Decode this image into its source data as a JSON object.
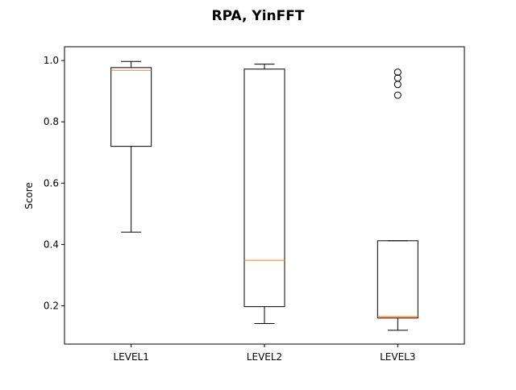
{
  "chart_data": {
    "type": "box",
    "title": "RPA, YinFFT",
    "xlabel": "",
    "ylabel": "Score",
    "ylim": [
      0.075,
      1.045
    ],
    "yticks": [
      0.2,
      0.4,
      0.6,
      0.8,
      1.0
    ],
    "ytick_labels": [
      "0.2",
      "0.4",
      "0.6",
      "0.8",
      "1.0"
    ],
    "grid": false,
    "categories": [
      "LEVEL1",
      "LEVEL2",
      "LEVEL3"
    ],
    "boxes": [
      {
        "whislo": 0.44,
        "q1": 0.72,
        "med": 0.968,
        "q3": 0.977,
        "whishi": 0.997,
        "fliers": []
      },
      {
        "whislo": 0.142,
        "q1": 0.197,
        "med": 0.348,
        "q3": 0.972,
        "whishi": 0.988,
        "fliers": []
      },
      {
        "whislo": 0.12,
        "q1": 0.16,
        "med": 0.165,
        "q3": 0.412,
        "whishi": 0.412,
        "fliers": [
          0.887,
          0.922,
          0.943,
          0.962
        ]
      }
    ],
    "colors": {
      "box": "#000000",
      "median": "#ff7f0e",
      "background": "#ffffff"
    }
  }
}
